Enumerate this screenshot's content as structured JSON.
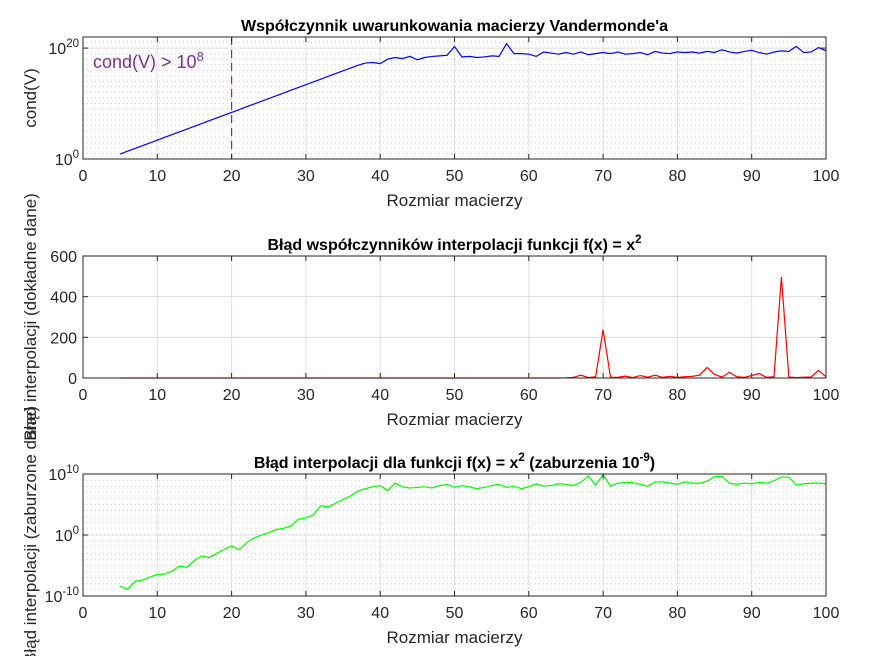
{
  "chart_data": [
    {
      "type": "line",
      "title": "Współczynnik uwarunkowania macierzy Vandermonde'a",
      "xlabel": "Rozmiar macierzy",
      "ylabel": "cond(V)",
      "xlim": [
        0,
        100
      ],
      "ylim_exp": [
        0,
        22
      ],
      "yscale": "log",
      "xticks": [
        "0",
        "10",
        "20",
        "30",
        "40",
        "50",
        "60",
        "70",
        "80",
        "90",
        "100"
      ],
      "yticks": [
        {
          "base": "10",
          "exp": "0",
          "value": 0
        },
        {
          "base": "10",
          "exp": "20",
          "value": 20
        }
      ],
      "grid": true,
      "color": "#0000ff",
      "annotation": {
        "text": "cond(V) > 10",
        "sup": "8",
        "x_line": 20,
        "color": "#7e2f8e"
      },
      "series": [
        {
          "x": [
            5,
            6,
            7,
            8,
            9,
            10,
            11,
            12,
            13,
            14,
            15,
            16,
            17,
            18,
            19,
            20,
            21,
            22,
            23,
            24,
            25,
            26,
            27,
            28,
            29,
            30,
            31,
            32,
            33,
            34,
            35,
            36,
            37,
            38,
            39,
            40,
            41,
            42,
            43,
            44,
            45,
            46,
            47,
            48,
            49,
            50,
            51,
            52,
            53,
            54,
            55,
            56,
            57,
            58,
            59,
            60,
            61,
            62,
            63,
            64,
            65,
            66,
            67,
            68,
            69,
            70,
            71,
            72,
            73,
            74,
            75,
            76,
            77,
            78,
            79,
            80,
            81,
            82,
            83,
            84,
            85,
            86,
            87,
            88,
            89,
            90,
            91,
            92,
            93,
            94,
            95,
            96,
            97,
            98,
            99,
            100
          ],
          "y_log10": [
            0.9,
            1.4,
            1.9,
            2.4,
            2.9,
            3.4,
            3.9,
            4.4,
            4.9,
            5.4,
            5.9,
            6.4,
            6.9,
            7.4,
            7.9,
            8.4,
            8.9,
            9.4,
            9.9,
            10.4,
            10.9,
            11.4,
            11.9,
            12.4,
            12.9,
            13.4,
            13.9,
            14.4,
            14.9,
            15.4,
            15.9,
            16.4,
            16.9,
            17.3,
            17.4,
            17.2,
            18.0,
            18.3,
            18.1,
            18.5,
            17.9,
            18.3,
            18.5,
            18.6,
            18.7,
            20.3,
            18.4,
            18.5,
            18.3,
            18.4,
            18.6,
            18.5,
            20.8,
            19.0,
            19.0,
            18.9,
            18.5,
            19.3,
            19.1,
            18.9,
            19.2,
            18.9,
            19.3,
            18.8,
            19.0,
            19.2,
            19.0,
            19.3,
            18.9,
            19.0,
            19.2,
            18.8,
            19.4,
            19.1,
            19.0,
            19.3,
            19.2,
            19.3,
            19.1,
            19.4,
            19.2,
            19.7,
            19.3,
            19.1,
            19.4,
            19.6,
            19.2,
            18.9,
            19.3,
            19.5,
            19.4,
            20.3,
            19.2,
            19.3,
            20.1,
            19.5
          ]
        }
      ]
    },
    {
      "type": "line",
      "title": "Błąd współczynników interpolacji funkcji f(x) = x",
      "title_sup": "2",
      "xlabel": "Rozmiar macierzy",
      "ylabel": "Błąd interpolacji (dokładne dane)",
      "xlim": [
        0,
        100
      ],
      "ylim": [
        0,
        600
      ],
      "xticks": [
        "0",
        "10",
        "20",
        "30",
        "40",
        "50",
        "60",
        "70",
        "80",
        "90",
        "100"
      ],
      "yticks": [
        {
          "label": "0",
          "value": 0
        },
        {
          "label": "200",
          "value": 200
        },
        {
          "label": "400",
          "value": 400
        },
        {
          "label": "600",
          "value": 600
        }
      ],
      "grid": true,
      "color": "#ff0000",
      "series": [
        {
          "x": [
            5,
            6,
            7,
            8,
            9,
            10,
            11,
            12,
            13,
            14,
            15,
            16,
            17,
            18,
            19,
            20,
            21,
            22,
            23,
            24,
            25,
            26,
            27,
            28,
            29,
            30,
            31,
            32,
            33,
            34,
            35,
            36,
            37,
            38,
            39,
            40,
            41,
            42,
            43,
            44,
            45,
            46,
            47,
            48,
            49,
            50,
            51,
            52,
            53,
            54,
            55,
            56,
            57,
            58,
            59,
            60,
            61,
            62,
            63,
            64,
            65,
            66,
            67,
            68,
            69,
            70,
            71,
            72,
            73,
            74,
            75,
            76,
            77,
            78,
            79,
            80,
            81,
            82,
            83,
            84,
            85,
            86,
            87,
            88,
            89,
            90,
            91,
            92,
            93,
            94,
            95,
            96,
            97,
            98,
            99,
            100
          ],
          "y": [
            0,
            0,
            0,
            0,
            0,
            0,
            0,
            0,
            0,
            0,
            0,
            0,
            0,
            0,
            0,
            0,
            0,
            0,
            0,
            0,
            0,
            0,
            0,
            0,
            0,
            0,
            0,
            0,
            0,
            0,
            0,
            0,
            0,
            0,
            0,
            0,
            0,
            0,
            0,
            0,
            0,
            0,
            0,
            0,
            0,
            0,
            0,
            0,
            0,
            0,
            0,
            0,
            0,
            0,
            0,
            0,
            0,
            0,
            0,
            0,
            1,
            3,
            14,
            2,
            6,
            238,
            4,
            3,
            9,
            2,
            12,
            4,
            14,
            3,
            8,
            3,
            6,
            8,
            14,
            52,
            18,
            4,
            28,
            6,
            3,
            12,
            22,
            3,
            6,
            497,
            5,
            2,
            4,
            5,
            38,
            6
          ]
        }
      ]
    },
    {
      "type": "line",
      "title": "Błąd interpolacji dla funkcji f(x) = x",
      "title_sup": "2",
      "title_mid": " (zaburzenia 10",
      "title_sup2": "-9",
      "title_end": ")",
      "xlabel": "Rozmiar macierzy",
      "ylabel": "Błąd interpolacji (zaburzone dane)",
      "xlim": [
        0,
        100
      ],
      "ylim_exp": [
        -10,
        10
      ],
      "yscale": "log",
      "xticks": [
        "0",
        "10",
        "20",
        "30",
        "40",
        "50",
        "60",
        "70",
        "80",
        "90",
        "100"
      ],
      "yticks": [
        {
          "base": "10",
          "exp": "-10",
          "value": -10
        },
        {
          "base": "10",
          "exp": "0",
          "value": 0
        },
        {
          "base": "10",
          "exp": "10",
          "value": 10
        }
      ],
      "grid": true,
      "color": "#00ff00",
      "series": [
        {
          "x": [
            5,
            6,
            7,
            8,
            9,
            10,
            11,
            12,
            13,
            14,
            15,
            16,
            17,
            18,
            19,
            20,
            21,
            22,
            23,
            24,
            25,
            26,
            27,
            28,
            29,
            30,
            31,
            32,
            33,
            34,
            35,
            36,
            37,
            38,
            39,
            40,
            41,
            42,
            43,
            44,
            45,
            46,
            47,
            48,
            49,
            50,
            51,
            52,
            53,
            54,
            55,
            56,
            57,
            58,
            59,
            60,
            61,
            62,
            63,
            64,
            65,
            66,
            67,
            68,
            69,
            70,
            71,
            72,
            73,
            74,
            75,
            76,
            77,
            78,
            79,
            80,
            81,
            82,
            83,
            84,
            85,
            86,
            87,
            88,
            89,
            90,
            91,
            92,
            93,
            94,
            95,
            96,
            97,
            98,
            99,
            100
          ],
          "y_log10": [
            -8.4,
            -8.9,
            -7.6,
            -7.4,
            -6.9,
            -6.5,
            -6.4,
            -5.9,
            -5.1,
            -5.3,
            -4.2,
            -3.4,
            -3.7,
            -3.0,
            -2.4,
            -1.8,
            -2.4,
            -1.3,
            -0.5,
            0,
            0.4,
            0.9,
            1.1,
            1.5,
            2.6,
            2.8,
            3.3,
            4.8,
            4.6,
            5.2,
            5.8,
            6.4,
            7.2,
            7.6,
            7.9,
            8.1,
            7.3,
            8.5,
            7.9,
            7.7,
            7.8,
            7.9,
            7.7,
            8.1,
            8.3,
            7.8,
            8.1,
            7.9,
            7.6,
            7.8,
            8.1,
            8.3,
            7.8,
            8.0,
            7.6,
            7.9,
            8.4,
            8.0,
            8.1,
            8.4,
            8.3,
            8.1,
            8.6,
            9.7,
            8.2,
            9.9,
            8.0,
            8.5,
            8.6,
            8.6,
            8.3,
            8.0,
            8.7,
            8.7,
            8.5,
            8.3,
            8.7,
            8.5,
            8.5,
            8.8,
            9.6,
            9.6,
            8.5,
            8.3,
            8.5,
            8.4,
            8.6,
            8.5,
            8.9,
            9.5,
            9.5,
            8.2,
            8.4,
            8.5,
            8.5,
            8.4
          ]
        }
      ]
    }
  ]
}
